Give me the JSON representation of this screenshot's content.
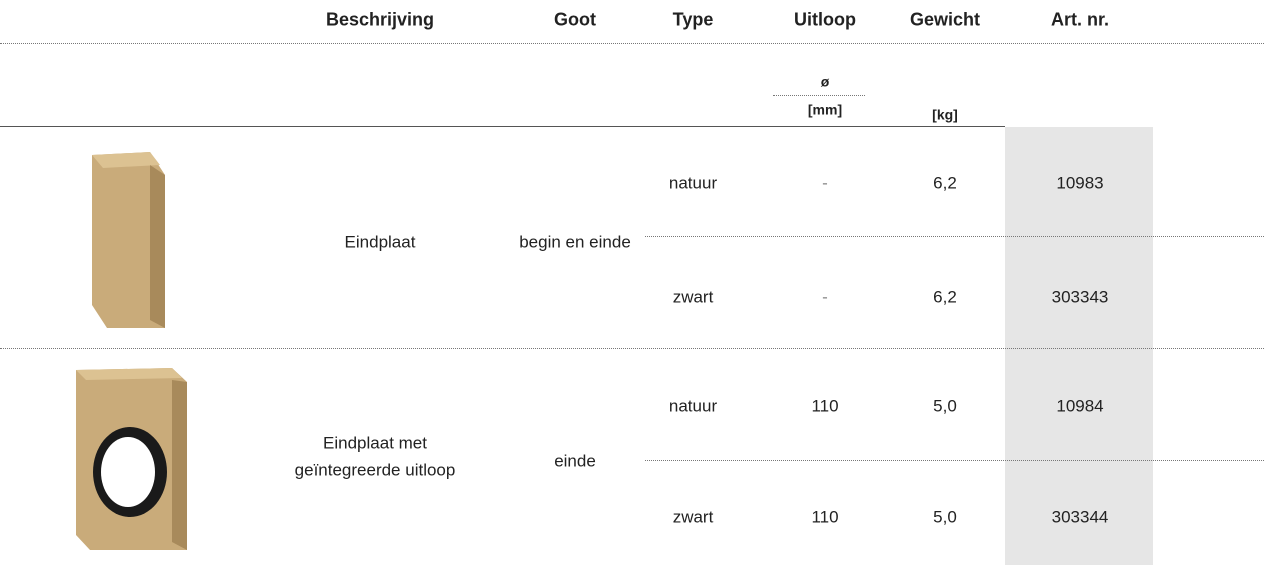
{
  "header": {
    "columns": [
      "Beschrijving",
      "Goot",
      "Type",
      "Uitloop",
      "Gewicht",
      "Art. nr."
    ],
    "units": {
      "diameter": "ø",
      "uitloop": "[mm]",
      "gewicht": "[kg]"
    }
  },
  "products": [
    {
      "description": [
        "Eindplaat"
      ],
      "goot": "begin en einde",
      "variants": [
        {
          "type": "natuur",
          "uitloop": "-",
          "gewicht": "6,2",
          "art_nr": "10983"
        },
        {
          "type": "zwart",
          "uitloop": "-",
          "gewicht": "6,2",
          "art_nr": "303343"
        }
      ]
    },
    {
      "description": [
        "Eindplaat met",
        "geïntegreerde uitloop"
      ],
      "goot": "einde",
      "variants": [
        {
          "type": "natuur",
          "uitloop": "110",
          "gewicht": "5,0",
          "art_nr": "10984"
        },
        {
          "type": "zwart",
          "uitloop": "110",
          "gewicht": "5,0",
          "art_nr": "303344"
        }
      ]
    }
  ]
}
